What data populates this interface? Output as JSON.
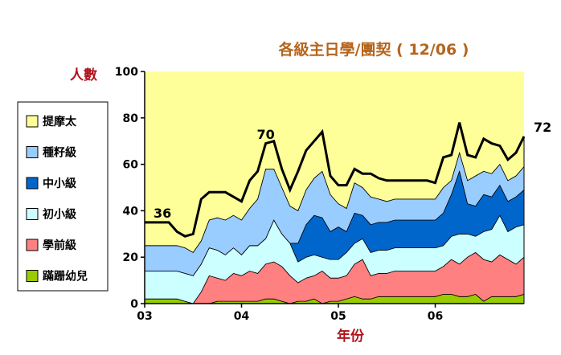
{
  "chart_data": {
    "type": "area",
    "stacked": true,
    "title": "各級主日學/團契 ( 12/06 )",
    "ylabel": "人數",
    "xlabel": "年份",
    "ylim": [
      0,
      100
    ],
    "yticks": [
      0,
      20,
      40,
      60,
      80,
      100
    ],
    "xticks": [
      {
        "label": "03",
        "x": 0
      },
      {
        "label": "04",
        "x": 12
      },
      {
        "label": "05",
        "x": 24
      },
      {
        "label": "06",
        "x": 36
      }
    ],
    "xlim": [
      0,
      47
    ],
    "plot_background": "#ffff99",
    "legend": "left",
    "annotations": [
      {
        "text": "36",
        "x": 2.2,
        "y": 37
      },
      {
        "text": "70",
        "x": 15,
        "y": 71
      },
      {
        "text": "72",
        "x": 49.3,
        "y": 74
      }
    ],
    "x": [
      0,
      1,
      2,
      3,
      4,
      5,
      6,
      7,
      8,
      9,
      10,
      11,
      12,
      13,
      14,
      15,
      16,
      17,
      18,
      19,
      20,
      21,
      22,
      23,
      24,
      25,
      26,
      27,
      28,
      29,
      30,
      31,
      32,
      33,
      34,
      35,
      36,
      37,
      38,
      39,
      40,
      41,
      42,
      43,
      44,
      45,
      46,
      47
    ],
    "series": [
      {
        "name": "蹣跚幼兒",
        "color": "#99cc00",
        "values": [
          2,
          2,
          2,
          2,
          2,
          1,
          0,
          0,
          0,
          1,
          1,
          1,
          1,
          1,
          1,
          2,
          2,
          1,
          0,
          1,
          1,
          2,
          0,
          1,
          1,
          2,
          3,
          2,
          2,
          3,
          3,
          3,
          3,
          3,
          3,
          3,
          3,
          4,
          4,
          3,
          3,
          4,
          1,
          3,
          3,
          3,
          3,
          4
        ]
      },
      {
        "name": "學前級",
        "color": "#ff8080",
        "values": [
          0,
          0,
          0,
          0,
          0,
          0,
          0,
          5,
          12,
          10,
          9,
          12,
          11,
          13,
          12,
          15,
          16,
          15,
          12,
          8,
          10,
          10,
          14,
          10,
          10,
          10,
          14,
          17,
          10,
          10,
          10,
          11,
          11,
          11,
          11,
          11,
          11,
          12,
          15,
          14,
          17,
          18,
          18,
          15,
          18,
          16,
          14,
          16
        ]
      },
      {
        "name": "初小級",
        "color": "#ccffff",
        "values": [
          12,
          12,
          12,
          12,
          12,
          12,
          12,
          12,
          12,
          12,
          11,
          11,
          9,
          11,
          12,
          11,
          18,
          14,
          14,
          9,
          9,
          9,
          6,
          8,
          8,
          10,
          9,
          9,
          10,
          10,
          10,
          10,
          10,
          10,
          10,
          10,
          10,
          9,
          10,
          13,
          10,
          7,
          12,
          14,
          17,
          12,
          16,
          14
        ]
      },
      {
        "name": "中小級",
        "color": "#0066cc",
        "values": [
          0,
          0,
          0,
          0,
          0,
          0,
          0,
          0,
          0,
          0,
          0,
          0,
          0,
          0,
          0,
          0,
          0,
          0,
          0,
          8,
          14,
          17,
          17,
          12,
          14,
          9,
          13,
          10,
          12,
          12,
          12,
          12,
          12,
          12,
          12,
          12,
          12,
          14,
          18,
          27,
          13,
          13,
          16,
          14,
          13,
          13,
          13,
          15
        ]
      },
      {
        "name": "種籽級",
        "color": "#99ccff",
        "values": [
          11,
          11,
          11,
          11,
          11,
          11,
          10,
          10,
          12,
          14,
          15,
          14,
          15,
          16,
          20,
          30,
          22,
          20,
          16,
          14,
          15,
          16,
          20,
          16,
          10,
          10,
          13,
          12,
          12,
          10,
          9,
          9,
          9,
          9,
          9,
          9,
          9,
          11,
          6,
          8,
          10,
          13,
          10,
          10,
          9,
          9,
          9,
          10
        ]
      },
      {
        "name": "提摩太",
        "color": "#ffff99",
        "values": [
          10,
          10,
          10,
          10,
          6,
          5,
          8,
          18,
          12,
          11,
          12,
          8,
          8,
          12,
          12,
          11,
          12,
          8,
          7,
          17,
          17,
          16,
          17,
          8,
          8,
          10,
          6,
          6,
          10,
          9,
          9,
          8,
          8,
          8,
          8,
          8,
          7,
          13,
          11,
          13,
          11,
          8,
          14,
          13,
          8,
          9,
          10,
          13
        ]
      }
    ]
  }
}
